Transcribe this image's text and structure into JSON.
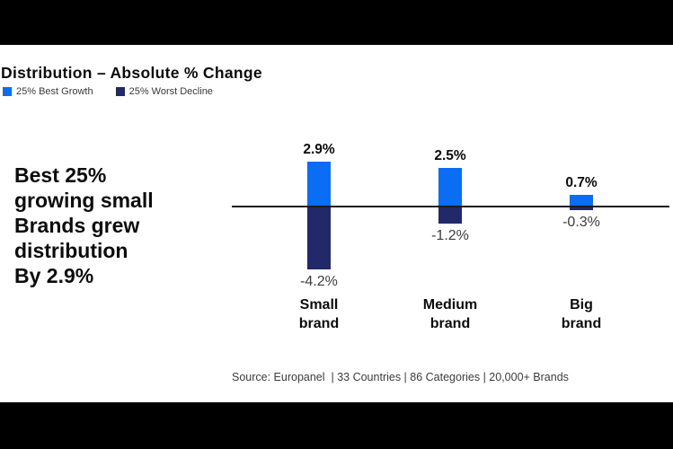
{
  "header": {
    "title": "Distribution – Absolute % Change",
    "legend": [
      {
        "label": "25% Best Growth",
        "color": "#0b6cf4"
      },
      {
        "label": "25% Worst Decline",
        "color": "#22296b"
      }
    ]
  },
  "callout": {
    "text": "Best 25%\ngrowing small\nBrands grew\ndistribution\nBy 2.9%"
  },
  "chart_data": {
    "type": "bar",
    "title": "Distribution – Absolute % Change",
    "categories": [
      "Small brand",
      "Medium brand",
      "Big brand"
    ],
    "series": [
      {
        "name": "25% Best Growth",
        "color": "#0b6cf4",
        "values": [
          2.9,
          2.5,
          0.7
        ],
        "labels": [
          "2.9%",
          "2.5%",
          "0.7%"
        ]
      },
      {
        "name": "25% Worst Decline",
        "color": "#22296b",
        "values": [
          -4.2,
          -1.2,
          -0.3
        ],
        "labels": [
          "-4.2%",
          "-1.2%",
          "-0.3%"
        ]
      }
    ],
    "units": "%",
    "grid": false,
    "zero_baseline": true,
    "legend_position": "top-left",
    "annotation": "Best 25% growing small Brands grew distribution By 2.9%"
  },
  "source": "Source: Europanel  | 33 Countries | 86 Categories | 20,000+ Brands"
}
